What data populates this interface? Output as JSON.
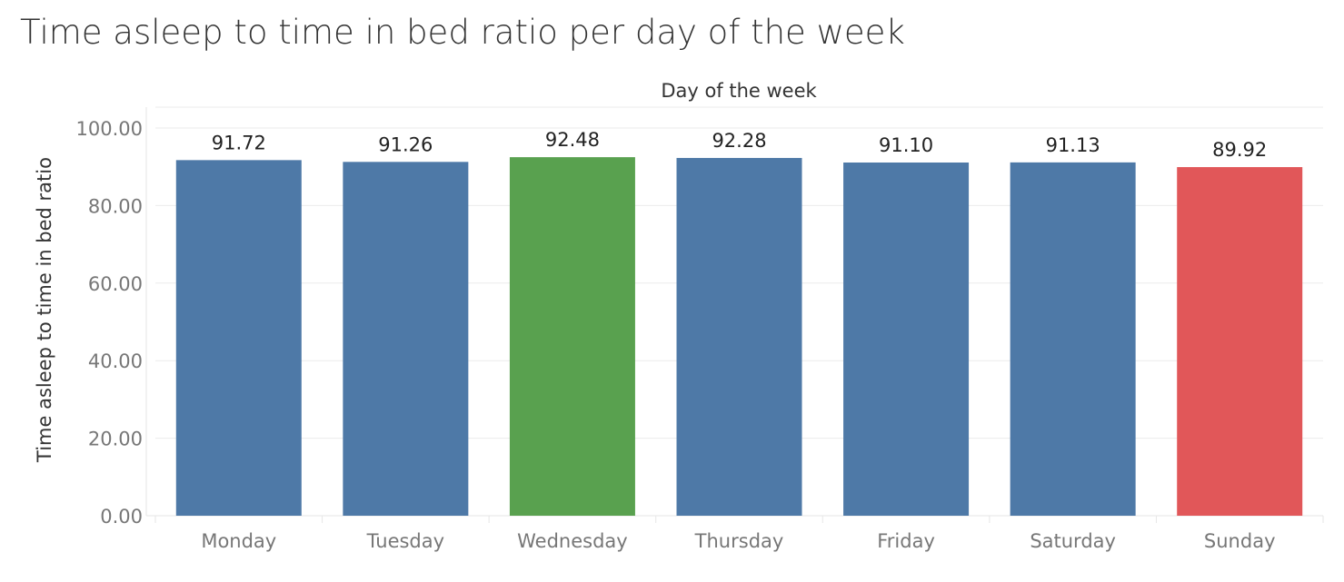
{
  "chart_data": {
    "type": "bar",
    "title": "Time asleep to time in bed ratio per day of the week",
    "xlabel": "Day of the week",
    "ylabel": "Time asleep to time in bed ratio",
    "categories": [
      "Monday",
      "Tuesday",
      "Wednesday",
      "Thursday",
      "Friday",
      "Saturday",
      "Sunday"
    ],
    "values": [
      91.72,
      91.26,
      92.48,
      92.28,
      91.1,
      91.13,
      89.92
    ],
    "value_labels": [
      "91.72",
      "91.26",
      "92.48",
      "92.28",
      "91.10",
      "91.13",
      "89.92"
    ],
    "bar_colors": [
      "#4e79a7",
      "#4e79a7",
      "#59a14f",
      "#4e79a7",
      "#4e79a7",
      "#4e79a7",
      "#e15759"
    ],
    "ylim": [
      0,
      100
    ],
    "y_ticks": [
      0,
      20,
      40,
      60,
      80,
      100
    ],
    "y_tick_labels": [
      "0.00",
      "20.00",
      "40.00",
      "60.00",
      "80.00",
      "100.00"
    ],
    "grid": true,
    "legend": "none"
  }
}
